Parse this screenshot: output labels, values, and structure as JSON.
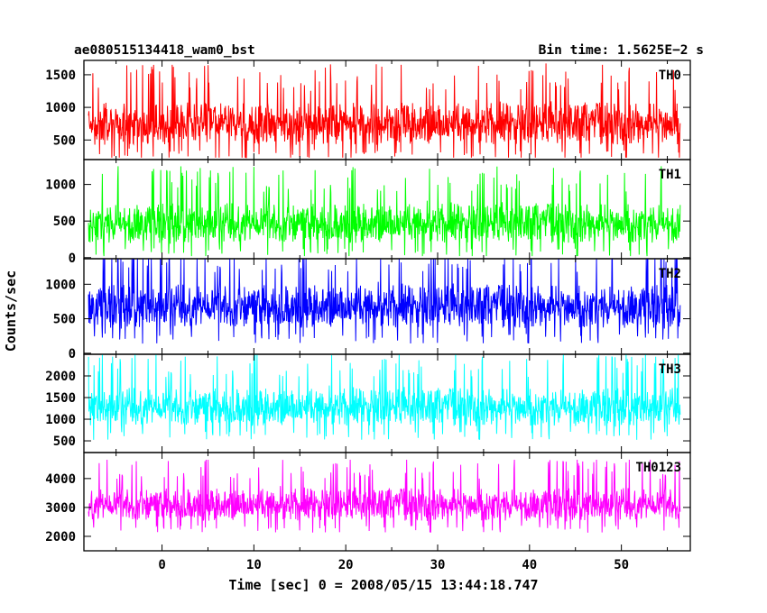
{
  "header": {
    "left_title": "ae080515134418_wam0_bst",
    "right_title": "Bin time: 1.5625E−2 s"
  },
  "axes": {
    "xlabel": "Time [sec] 0 = 2008/05/15 13:44:18.747",
    "ylabel": "Counts/sec",
    "xticks": [
      "0",
      "10",
      "20",
      "30",
      "40",
      "50"
    ]
  },
  "chart_data": {
    "type": "line",
    "x_range": [
      -8.0,
      56.4
    ],
    "xlim": [
      -8.5,
      57.5
    ],
    "xticks": [
      0,
      10,
      20,
      30,
      40,
      50
    ],
    "xlabel": "Time [sec] 0 = 2008/05/15 13:44:18.747",
    "ylabel": "Counts/sec",
    "panels": [
      {
        "name": "TH0",
        "color": "#ff0000",
        "ylim": [
          200,
          1720
        ],
        "yticks": [
          500,
          1000,
          1500
        ],
        "ytick_labels": [
          "500",
          "1000",
          "1500"
        ],
        "baseline": 750,
        "noise": 310,
        "min": 230,
        "max": 1700
      },
      {
        "name": "TH1",
        "color": "#00ff00",
        "ylim": [
          -15,
          1340
        ],
        "yticks": [
          0,
          500,
          1000
        ],
        "ytick_labels": [
          "0",
          "500",
          "1000"
        ],
        "baseline": 470,
        "noise": 260,
        "min": 20,
        "max": 1310
      },
      {
        "name": "TH2",
        "color": "#0000ff",
        "ylim": [
          -15,
          1370
        ],
        "yticks": [
          0,
          500,
          1000
        ],
        "ytick_labels": [
          "0",
          "500",
          "1000"
        ],
        "baseline": 680,
        "noise": 300,
        "min": 20,
        "max": 1370
      },
      {
        "name": "TH3",
        "color": "#00ffff",
        "ylim": [
          230,
          2500
        ],
        "yticks": [
          500,
          1000,
          1500,
          2000
        ],
        "ytick_labels": [
          "500",
          "1000",
          "1500",
          "2000"
        ],
        "baseline": 1280,
        "noise": 420,
        "min": 280,
        "max": 2490
      },
      {
        "name": "TH0123",
        "color": "#ff00ff",
        "ylim": [
          1500,
          4900
        ],
        "yticks": [
          2000,
          3000,
          4000
        ],
        "ytick_labels": [
          "2000",
          "3000",
          "4000"
        ],
        "baseline": 3100,
        "noise": 540,
        "min": 1580,
        "max": 4650
      }
    ]
  }
}
